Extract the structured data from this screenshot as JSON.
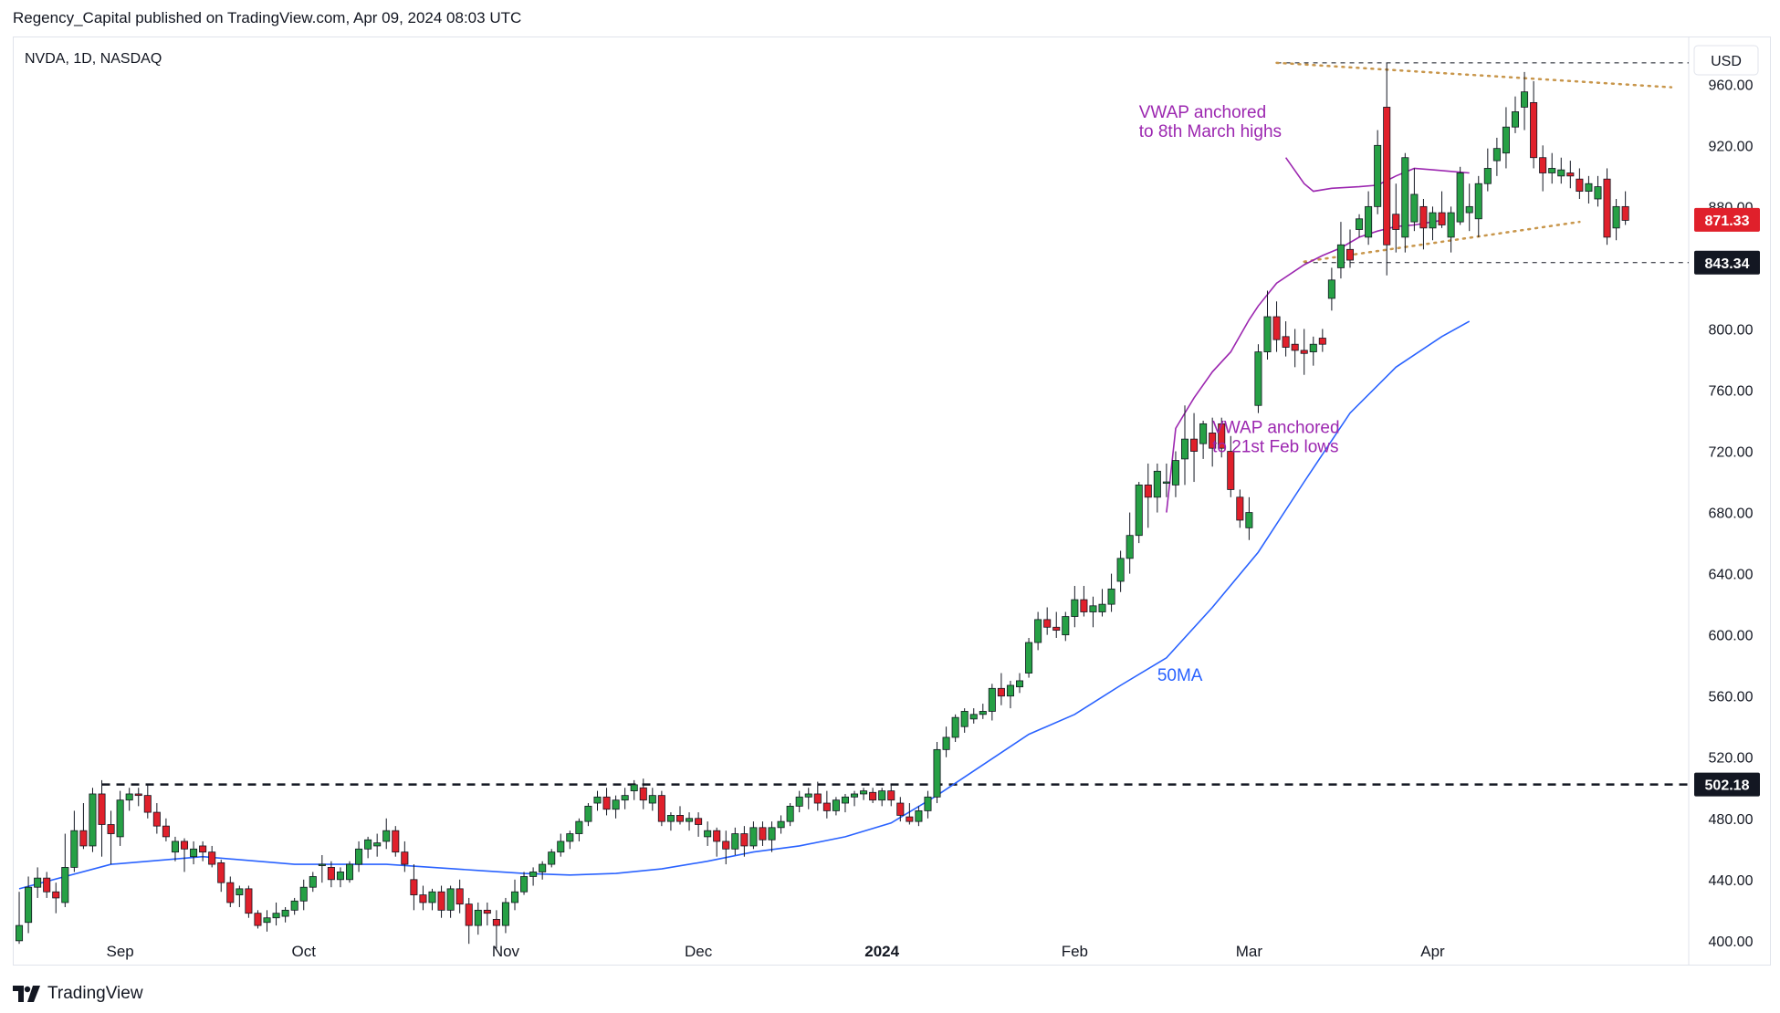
{
  "header": {
    "published": "Regency_Capital published on TradingView.com, Apr 09, 2024 08:03 UTC",
    "symbol": "NVDA, 1D, NASDAQ",
    "currency": "USD"
  },
  "footer": {
    "brand": "TradingView"
  },
  "colors": {
    "up": "#26a045",
    "down": "#e0202b",
    "ma": "#2962ff",
    "vwap": "#9c27b0",
    "trend": "#c8964b"
  },
  "chart_data": {
    "type": "candlestick",
    "title": "NVDA, 1D, NASDAQ",
    "ylim": [
      385,
      990
    ],
    "y_ticks": [
      400,
      440,
      480,
      520,
      560,
      600,
      640,
      680,
      720,
      760,
      800,
      840,
      880,
      920,
      960
    ],
    "y_tick_labels": [
      "400.00",
      "440.00",
      "480.00",
      "520.00",
      "560.00",
      "600.00",
      "640.00",
      "680.00",
      "720.00",
      "760.00",
      "800.00",
      "",
      "880.00",
      "920.00",
      "960.00"
    ],
    "x_ticks": [
      {
        "label": "Sep",
        "index": 11
      },
      {
        "label": "Oct",
        "index": 31
      },
      {
        "label": "Nov",
        "index": 53
      },
      {
        "label": "Dec",
        "index": 74
      },
      {
        "label": "2024",
        "index": 94
      },
      {
        "label": "Feb",
        "index": 115
      },
      {
        "label": "Mar",
        "index": 134
      },
      {
        "label": "Apr",
        "index": 154
      }
    ],
    "candles": [
      [
        400,
        432,
        398,
        410
      ],
      [
        412,
        442,
        405,
        435
      ],
      [
        435,
        448,
        428,
        441
      ],
      [
        441,
        445,
        428,
        432
      ],
      [
        432,
        438,
        418,
        428
      ],
      [
        425,
        470,
        422,
        448
      ],
      [
        448,
        485,
        445,
        472
      ],
      [
        472,
        490,
        460,
        462
      ],
      [
        462,
        500,
        458,
        496
      ],
      [
        496,
        505,
        455,
        476
      ],
      [
        476,
        485,
        450,
        470
      ],
      [
        468,
        498,
        462,
        492
      ],
      [
        492,
        500,
        485,
        496
      ],
      [
        496,
        500,
        488,
        495
      ],
      [
        495,
        502,
        480,
        484
      ],
      [
        484,
        490,
        470,
        475
      ],
      [
        475,
        480,
        465,
        468
      ],
      [
        458,
        468,
        452,
        465
      ],
      [
        465,
        467,
        445,
        460
      ],
      [
        455,
        465,
        450,
        460
      ],
      [
        462,
        465,
        452,
        458
      ],
      [
        458,
        462,
        448,
        450
      ],
      [
        451,
        453,
        432,
        438
      ],
      [
        438,
        442,
        422,
        425
      ],
      [
        430,
        436,
        422,
        434
      ],
      [
        434,
        436,
        415,
        418
      ],
      [
        418,
        420,
        408,
        410
      ],
      [
        412,
        420,
        406,
        415
      ],
      [
        415,
        425,
        410,
        418
      ],
      [
        416,
        422,
        412,
        420
      ],
      [
        420,
        428,
        417,
        426
      ],
      [
        426,
        440,
        420,
        435
      ],
      [
        435,
        445,
        432,
        442
      ],
      [
        450,
        456,
        438,
        450
      ],
      [
        448,
        452,
        435,
        440
      ],
      [
        440,
        448,
        435,
        445
      ],
      [
        440,
        452,
        438,
        450
      ],
      [
        450,
        465,
        445,
        460
      ],
      [
        460,
        468,
        454,
        466
      ],
      [
        462,
        470,
        455,
        464
      ],
      [
        465,
        480,
        460,
        472
      ],
      [
        472,
        475,
        455,
        458
      ],
      [
        458,
        465,
        445,
        450
      ],
      [
        440,
        450,
        420,
        430
      ],
      [
        430,
        436,
        420,
        425
      ],
      [
        425,
        434,
        420,
        432
      ],
      [
        432,
        436,
        415,
        420
      ],
      [
        420,
        436,
        415,
        434
      ],
      [
        434,
        440,
        418,
        424
      ],
      [
        424,
        428,
        398,
        410
      ],
      [
        410,
        425,
        404,
        420
      ],
      [
        420,
        425,
        410,
        418
      ],
      [
        414,
        420,
        395,
        410
      ],
      [
        410,
        428,
        405,
        425
      ],
      [
        425,
        440,
        420,
        432
      ],
      [
        432,
        445,
        430,
        442
      ],
      [
        442,
        448,
        436,
        445
      ],
      [
        445,
        452,
        440,
        450
      ],
      [
        450,
        460,
        448,
        458
      ],
      [
        458,
        470,
        455,
        465
      ],
      [
        465,
        472,
        460,
        470
      ],
      [
        470,
        480,
        465,
        478
      ],
      [
        478,
        490,
        475,
        488
      ],
      [
        490,
        498,
        485,
        494
      ],
      [
        494,
        500,
        482,
        486
      ],
      [
        486,
        495,
        480,
        492
      ],
      [
        492,
        500,
        486,
        495
      ],
      [
        498,
        505,
        492,
        502
      ],
      [
        500,
        506,
        486,
        492
      ],
      [
        490,
        500,
        485,
        495
      ],
      [
        495,
        498,
        475,
        478
      ],
      [
        478,
        484,
        472,
        482
      ],
      [
        482,
        488,
        476,
        478
      ],
      [
        478,
        484,
        472,
        480
      ],
      [
        480,
        484,
        468,
        476
      ],
      [
        468,
        478,
        462,
        472
      ],
      [
        472,
        474,
        455,
        465
      ],
      [
        465,
        472,
        450,
        460
      ],
      [
        460,
        474,
        456,
        470
      ],
      [
        470,
        475,
        455,
        462
      ],
      [
        462,
        478,
        460,
        474
      ],
      [
        474,
        478,
        462,
        466
      ],
      [
        466,
        478,
        458,
        474
      ],
      [
        474,
        482,
        470,
        478
      ],
      [
        478,
        490,
        475,
        488
      ],
      [
        488,
        498,
        484,
        494
      ],
      [
        494,
        500,
        486,
        496
      ],
      [
        496,
        504,
        485,
        490
      ],
      [
        490,
        498,
        480,
        485
      ],
      [
        485,
        494,
        482,
        492
      ],
      [
        490,
        496,
        484,
        494
      ],
      [
        494,
        498,
        488,
        496
      ],
      [
        496,
        500,
        492,
        498
      ],
      [
        497,
        500,
        490,
        492
      ],
      [
        492,
        500,
        488,
        498
      ],
      [
        498,
        502,
        488,
        492
      ],
      [
        490,
        494,
        478,
        482
      ],
      [
        481,
        490,
        476,
        478
      ],
      [
        478,
        488,
        475,
        485
      ],
      [
        485,
        498,
        480,
        494
      ],
      [
        494,
        530,
        490,
        525
      ],
      [
        525,
        540,
        520,
        533
      ],
      [
        533,
        548,
        530,
        546
      ],
      [
        540,
        552,
        536,
        550
      ],
      [
        545,
        552,
        542,
        548
      ],
      [
        548,
        555,
        545,
        550
      ],
      [
        550,
        568,
        544,
        565
      ],
      [
        565,
        575,
        554,
        560
      ],
      [
        560,
        570,
        552,
        567
      ],
      [
        566,
        575,
        562,
        570
      ],
      [
        575,
        598,
        572,
        595
      ],
      [
        595,
        615,
        590,
        610
      ],
      [
        610,
        618,
        600,
        605
      ],
      [
        605,
        615,
        598,
        603
      ],
      [
        600,
        615,
        596,
        612
      ],
      [
        612,
        632,
        605,
        623
      ],
      [
        623,
        632,
        612,
        615
      ],
      [
        615,
        625,
        605,
        619
      ],
      [
        615,
        630,
        612,
        620
      ],
      [
        620,
        640,
        615,
        630
      ],
      [
        635,
        655,
        628,
        650
      ],
      [
        650,
        680,
        640,
        665
      ],
      [
        665,
        700,
        660,
        698
      ],
      [
        698,
        712,
        670,
        690
      ],
      [
        690,
        712,
        680,
        707
      ],
      [
        700,
        712,
        690,
        700
      ],
      [
        698,
        720,
        690,
        714
      ],
      [
        715,
        750,
        698,
        728
      ],
      [
        728,
        745,
        700,
        720
      ],
      [
        725,
        740,
        715,
        738
      ],
      [
        732,
        742,
        710,
        722
      ],
      [
        738,
        742,
        716,
        722
      ],
      [
        720,
        730,
        690,
        695
      ],
      [
        690,
        695,
        670,
        675
      ],
      [
        670,
        690,
        662,
        680
      ],
      [
        750,
        790,
        745,
        785
      ],
      [
        785,
        825,
        780,
        808
      ],
      [
        808,
        818,
        785,
        793
      ],
      [
        795,
        805,
        782,
        788
      ],
      [
        790,
        800,
        775,
        786
      ],
      [
        786,
        800,
        770,
        784
      ],
      [
        785,
        795,
        776,
        790
      ],
      [
        794,
        800,
        785,
        790
      ],
      [
        820,
        840,
        812,
        832
      ],
      [
        840,
        870,
        833,
        855
      ],
      [
        852,
        865,
        840,
        845
      ],
      [
        865,
        875,
        860,
        872
      ],
      [
        860,
        890,
        855,
        880
      ],
      [
        880,
        930,
        875,
        920
      ],
      [
        945,
        974,
        835,
        855
      ],
      [
        875,
        895,
        850,
        865
      ],
      [
        860,
        915,
        850,
        912
      ],
      [
        870,
        905,
        864,
        888
      ],
      [
        880,
        885,
        852,
        866
      ],
      [
        866,
        880,
        858,
        876
      ],
      [
        876,
        890,
        866,
        868
      ],
      [
        860,
        880,
        850,
        876
      ],
      [
        870,
        906,
        868,
        902
      ],
      [
        876,
        895,
        864,
        880
      ],
      [
        872,
        900,
        860,
        895
      ],
      [
        895,
        918,
        890,
        905
      ],
      [
        910,
        925,
        900,
        918
      ],
      [
        915,
        945,
        905,
        932
      ],
      [
        932,
        952,
        928,
        942
      ],
      [
        945,
        968,
        930,
        955
      ],
      [
        948,
        962,
        905,
        912
      ],
      [
        912,
        920,
        890,
        902
      ],
      [
        902,
        915,
        895,
        905
      ],
      [
        900,
        912,
        895,
        904
      ],
      [
        902,
        910,
        892,
        900
      ],
      [
        898,
        905,
        885,
        890
      ],
      [
        890,
        900,
        882,
        895
      ],
      [
        885,
        900,
        880,
        893
      ],
      [
        898,
        905,
        855,
        860
      ],
      [
        866,
        885,
        858,
        880
      ],
      [
        880,
        890,
        868,
        871
      ]
    ],
    "series": [
      {
        "name": "50MA",
        "label_at": {
          "index": 124,
          "value": 570
        },
        "points": [
          [
            0,
            434
          ],
          [
            10,
            450
          ],
          [
            20,
            455
          ],
          [
            30,
            450
          ],
          [
            40,
            450
          ],
          [
            50,
            446
          ],
          [
            55,
            444
          ],
          [
            60,
            443
          ],
          [
            65,
            444
          ],
          [
            70,
            447
          ],
          [
            75,
            452
          ],
          [
            80,
            458
          ],
          [
            85,
            462
          ],
          [
            90,
            468
          ],
          [
            95,
            477
          ],
          [
            100,
            495
          ],
          [
            105,
            515
          ],
          [
            110,
            535
          ],
          [
            115,
            548
          ],
          [
            120,
            567
          ],
          [
            125,
            585
          ],
          [
            130,
            618
          ],
          [
            135,
            654
          ],
          [
            140,
            700
          ],
          [
            145,
            745
          ],
          [
            150,
            775
          ],
          [
            155,
            795
          ],
          [
            158,
            805
          ]
        ]
      },
      {
        "name": "VWAP",
        "label": "VWAP anchored to 21st Feb lows",
        "label_at": {
          "index": 130,
          "value": 732
        },
        "points": [
          [
            125,
            680
          ],
          [
            126,
            735
          ],
          [
            127,
            745
          ],
          [
            128,
            755
          ],
          [
            130,
            772
          ],
          [
            132,
            785
          ],
          [
            134,
            806
          ],
          [
            135,
            815
          ],
          [
            137,
            830
          ],
          [
            140,
            842
          ],
          [
            142,
            848
          ],
          [
            144,
            853
          ],
          [
            146,
            860
          ],
          [
            148,
            864
          ],
          [
            150,
            867
          ],
          [
            152,
            868
          ],
          [
            154,
            870
          ],
          [
            155,
            871
          ]
        ]
      },
      {
        "name": "VWAP",
        "label": "VWAP anchored to 8th March highs",
        "label_at": {
          "index": 122,
          "value": 938
        },
        "points": [
          [
            138,
            912
          ],
          [
            140,
            895
          ],
          [
            141,
            890
          ],
          [
            143,
            892
          ],
          [
            146,
            893
          ],
          [
            148,
            894
          ],
          [
            150,
            900
          ],
          [
            152,
            905
          ],
          [
            154,
            904
          ],
          [
            156,
            903
          ],
          [
            158,
            902
          ]
        ]
      }
    ],
    "horizontal_lines": [
      {
        "value": 502.18,
        "label": "502.18",
        "from_index": 9,
        "style": "dashed-bold"
      },
      {
        "value": 974.0,
        "from_index": 137,
        "style": "dashed-thin"
      },
      {
        "value": 843.34,
        "label": "843.34",
        "from_index": 140,
        "style": "dashed-thin"
      }
    ],
    "trendlines": [
      {
        "from": [
          137,
          974
        ],
        "to": [
          180,
          958
        ]
      },
      {
        "from": [
          140,
          844
        ],
        "to": [
          170,
          870
        ]
      }
    ],
    "last_price": {
      "value": 871.33,
      "label": "871.33"
    }
  }
}
